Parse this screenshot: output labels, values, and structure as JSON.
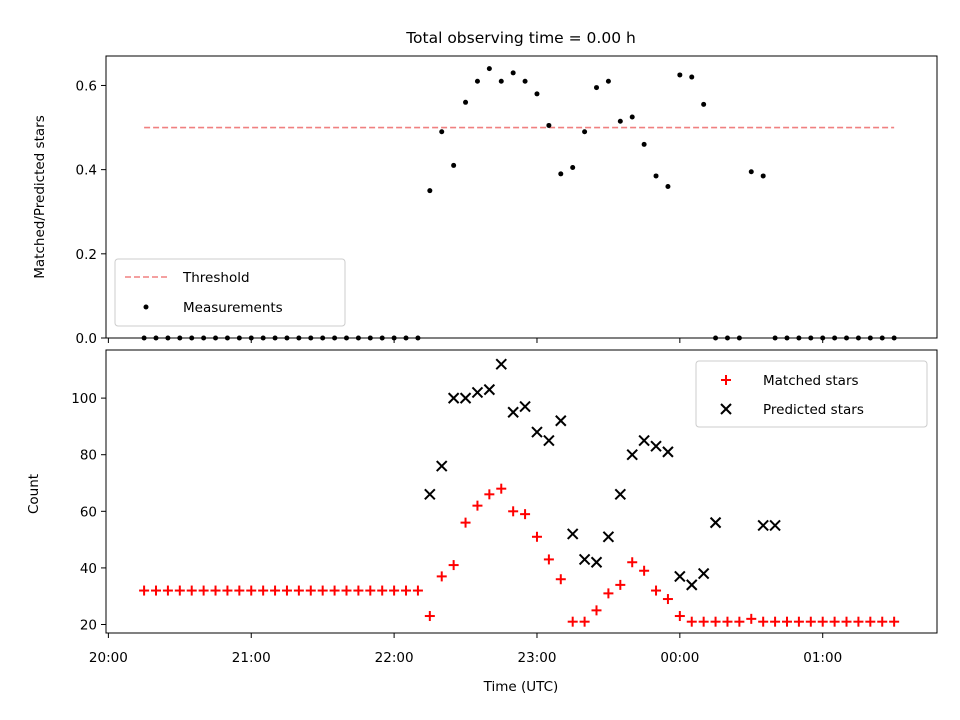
{
  "chart_data": [
    {
      "type": "scatter",
      "title": "Total observing time = 0.00 h",
      "xlabel": "",
      "ylabel": "Matched/Predicted stars",
      "x_range": [
        "19:59",
        "01:48"
      ],
      "ylim": [
        0,
        0.67
      ],
      "yticks": [
        0.0,
        0.2,
        0.4,
        0.6
      ],
      "ytick_labels": [
        "0.0",
        "0.2",
        "0.4",
        "0.6"
      ],
      "grid": false,
      "legend_position": "lower-left",
      "threshold": {
        "name": "Threshold",
        "y": 0.5,
        "x_start": "20:15",
        "x_end": "01:30",
        "color": "#f08080",
        "style": "dashed"
      },
      "series": [
        {
          "name": "Measurements",
          "color": "#000000",
          "marker": "dot",
          "x": [
            "20:15",
            "20:20",
            "20:25",
            "20:30",
            "20:35",
            "20:40",
            "20:45",
            "20:50",
            "20:55",
            "21:00",
            "21:05",
            "21:10",
            "21:15",
            "21:20",
            "21:25",
            "21:30",
            "21:35",
            "21:40",
            "21:45",
            "21:50",
            "21:55",
            "22:00",
            "22:05",
            "22:10",
            "22:15",
            "22:20",
            "22:25",
            "22:30",
            "22:35",
            "22:40",
            "22:45",
            "22:50",
            "22:55",
            "23:00",
            "23:05",
            "23:10",
            "23:15",
            "23:20",
            "23:25",
            "23:30",
            "23:35",
            "23:40",
            "23:45",
            "23:50",
            "23:55",
            "00:00",
            "00:05",
            "00:10",
            "00:15",
            "00:20",
            "00:25",
            "00:30",
            "00:35",
            "00:40",
            "00:45",
            "00:50",
            "00:55",
            "01:00",
            "01:05",
            "01:10",
            "01:15",
            "01:20",
            "01:25",
            "01:30"
          ],
          "y": [
            0,
            0,
            0,
            0,
            0,
            0,
            0,
            0,
            0,
            0,
            0,
            0,
            0,
            0,
            0,
            0,
            0,
            0,
            0,
            0,
            0,
            0,
            0,
            0,
            0.35,
            0.49,
            0.41,
            0.56,
            0.61,
            0.64,
            0.61,
            0.63,
            0.61,
            0.58,
            0.505,
            0.39,
            0.405,
            0.49,
            0.595,
            0.61,
            0.515,
            0.525,
            0.46,
            0.385,
            0.36,
            0.625,
            0.62,
            0.555,
            0,
            0,
            0,
            0.395,
            0.385,
            0,
            0,
            0,
            0,
            0,
            0,
            0,
            0,
            0,
            0,
            0
          ]
        }
      ]
    },
    {
      "type": "scatter",
      "title": "",
      "xlabel": "Time (UTC)",
      "ylabel": "Count",
      "x_range": [
        "19:59",
        "01:48"
      ],
      "xticks": [
        "20:00",
        "21:00",
        "22:00",
        "23:00",
        "00:00",
        "01:00"
      ],
      "ylim": [
        17,
        117
      ],
      "yticks": [
        20,
        40,
        60,
        80,
        100
      ],
      "grid": false,
      "legend_position": "top-right",
      "series": [
        {
          "name": "Matched stars",
          "color": "#ff0000",
          "marker": "plus",
          "x": [
            "20:15",
            "20:20",
            "20:25",
            "20:30",
            "20:35",
            "20:40",
            "20:45",
            "20:50",
            "20:55",
            "21:00",
            "21:05",
            "21:10",
            "21:15",
            "21:20",
            "21:25",
            "21:30",
            "21:35",
            "21:40",
            "21:45",
            "21:50",
            "21:55",
            "22:00",
            "22:05",
            "22:10",
            "22:15",
            "22:20",
            "22:25",
            "22:30",
            "22:35",
            "22:40",
            "22:45",
            "22:50",
            "22:55",
            "23:00",
            "23:05",
            "23:10",
            "23:15",
            "23:20",
            "23:25",
            "23:30",
            "23:35",
            "23:40",
            "23:45",
            "23:50",
            "23:55",
            "00:00",
            "00:05",
            "00:10",
            "00:15",
            "00:20",
            "00:25",
            "00:30",
            "00:35",
            "00:40",
            "00:45",
            "00:50",
            "00:55",
            "01:00",
            "01:05",
            "01:10",
            "01:15",
            "01:20",
            "01:25",
            "01:30"
          ],
          "y": [
            32,
            32,
            32,
            32,
            32,
            32,
            32,
            32,
            32,
            32,
            32,
            32,
            32,
            32,
            32,
            32,
            32,
            32,
            32,
            32,
            32,
            32,
            32,
            32,
            23,
            37,
            41,
            56,
            62,
            66,
            68,
            60,
            59,
            51,
            43,
            36,
            21,
            21,
            25,
            31,
            34,
            42,
            39,
            32,
            29,
            23,
            21,
            21,
            21,
            21,
            21,
            22,
            21,
            21,
            21,
            21,
            21,
            21,
            21,
            21,
            21,
            21,
            21,
            21
          ]
        },
        {
          "name": "Predicted stars",
          "color": "#000000",
          "marker": "x",
          "x": [
            "22:15",
            "22:20",
            "22:25",
            "22:30",
            "22:35",
            "22:40",
            "22:45",
            "22:50",
            "22:55",
            "23:00",
            "23:05",
            "23:10",
            "23:15",
            "23:20",
            "23:25",
            "23:30",
            "23:35",
            "23:40",
            "23:45",
            "23:50",
            "23:55",
            "00:00",
            "00:05",
            "00:10",
            "00:15",
            "00:35",
            "00:40"
          ],
          "y": [
            66,
            76,
            100,
            100,
            102,
            103,
            112,
            95,
            97,
            88,
            85,
            92,
            52,
            43,
            42,
            51,
            66,
            80,
            85,
            83,
            81,
            37,
            34,
            38,
            56,
            55,
            55
          ]
        }
      ]
    }
  ]
}
